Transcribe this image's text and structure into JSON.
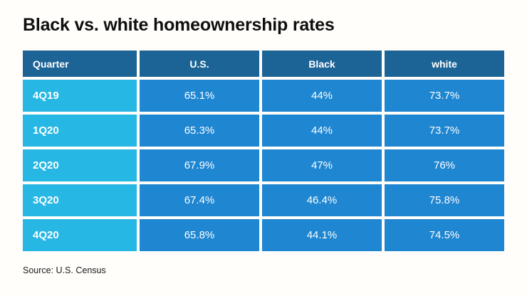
{
  "title": "Black vs. white homeownership rates",
  "source_note": "Source: U.S. Census",
  "colors": {
    "header_bg": "#1c6396",
    "quarter_column_bg": "#26b7e4",
    "data_cell_bg": "#1f86d1",
    "cell_text": "#ffffff",
    "page_bg": "#fffefb",
    "title_text": "#0f0f0f"
  },
  "chart_data": {
    "type": "table",
    "title": "Black vs. white homeownership rates",
    "columns": [
      "Quarter",
      "U.S.",
      "Black",
      "white"
    ],
    "rows": [
      [
        "4Q19",
        "65.1%",
        "44%",
        "73.7%"
      ],
      [
        "1Q20",
        "65.3%",
        "44%",
        "73.7%"
      ],
      [
        "2Q20",
        "67.9%",
        "47%",
        "76%"
      ],
      [
        "3Q20",
        "67.4%",
        "46.4%",
        "75.8%"
      ],
      [
        "4Q20",
        "65.8%",
        "44.1%",
        "74.5%"
      ]
    ],
    "source": "Source: U.S. Census"
  }
}
